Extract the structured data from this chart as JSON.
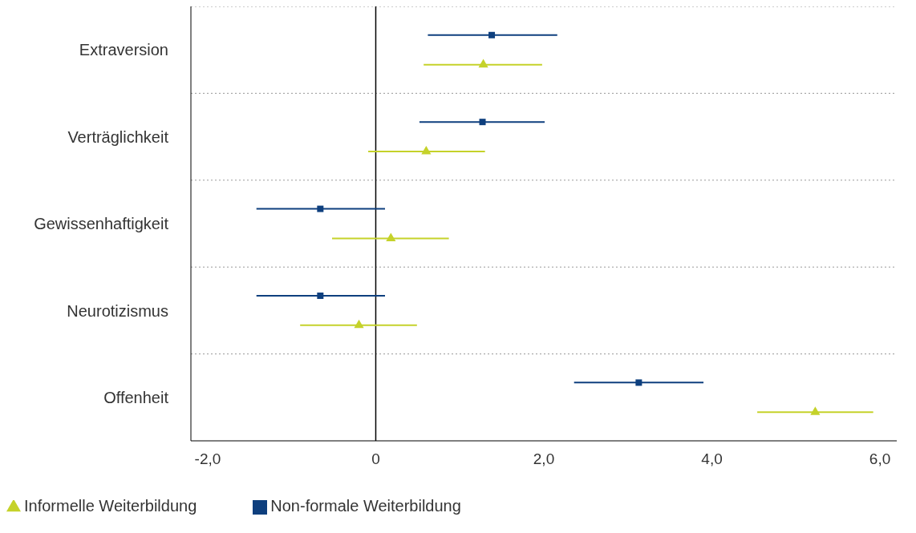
{
  "chart_data": {
    "type": "scatter",
    "orientation": "horizontal",
    "categories": [
      "Extraversion",
      "Verträglichkeit",
      "Gewissenhaftigkeit",
      "Neurotizismus",
      "Offenheit"
    ],
    "series": [
      {
        "name": "Non-formale Weiterbildung",
        "color": "#0e3f7e",
        "marker": "square",
        "values": [
          1.38,
          1.27,
          -0.66,
          -0.66,
          3.13
        ],
        "errors": [
          [
            0.62,
            2.16
          ],
          [
            0.52,
            2.01
          ],
          [
            -1.42,
            0.11
          ],
          [
            -1.42,
            0.11
          ],
          [
            2.36,
            3.9
          ]
        ]
      },
      {
        "name": "Informelle Weiterbildung",
        "color": "#c5d22a",
        "marker": "triangle",
        "values": [
          1.28,
          0.6,
          0.18,
          -0.2,
          5.23
        ],
        "errors": [
          [
            0.57,
            1.98
          ],
          [
            -0.09,
            1.3
          ],
          [
            -0.52,
            0.87
          ],
          [
            -0.9,
            0.49
          ],
          [
            4.54,
            5.92
          ]
        ]
      }
    ],
    "xlim": [
      -2.2,
      6.2
    ],
    "xticks": [
      {
        "value": -2,
        "label": "-2,0"
      },
      {
        "value": 0,
        "label": "0"
      },
      {
        "value": 2,
        "label": "2,0"
      },
      {
        "value": 4,
        "label": "4,0"
      },
      {
        "value": 6,
        "label": "6,0"
      }
    ],
    "ref_lines": [
      {
        "axis": "x",
        "value": 0,
        "color": "#000000"
      }
    ],
    "grid": "y",
    "legend": "bottom left"
  }
}
